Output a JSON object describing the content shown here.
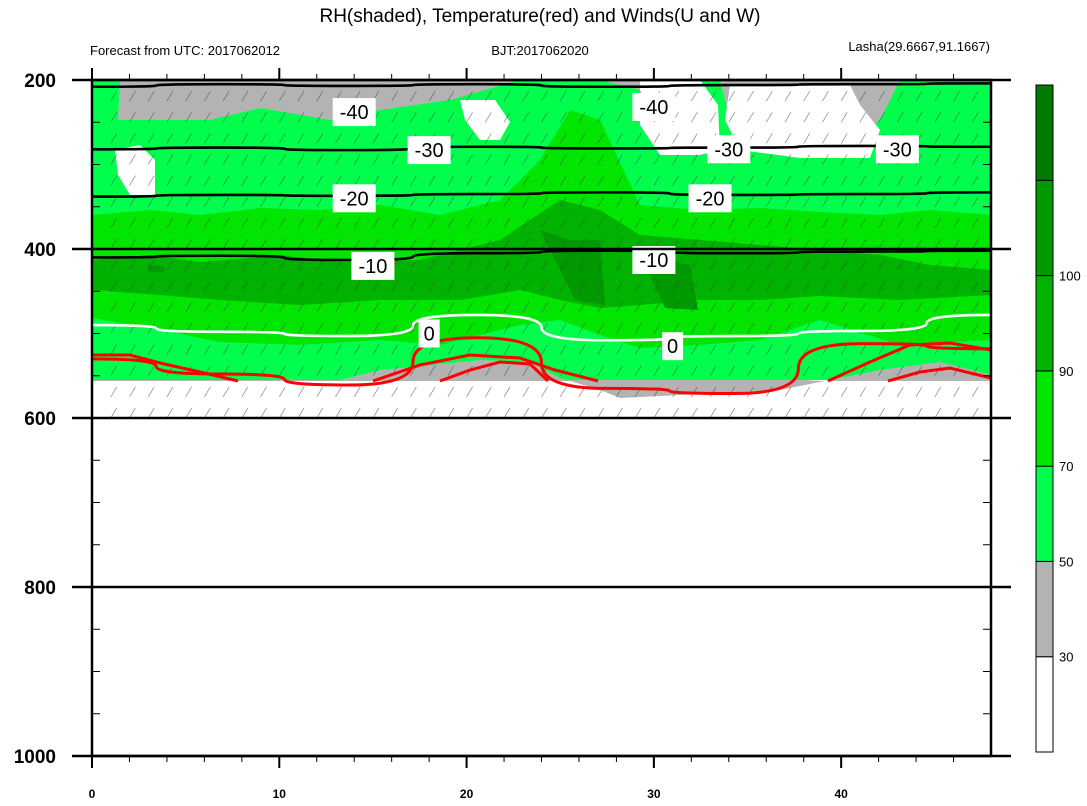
{
  "chart_data": {
    "type": "contour",
    "title": "RH(shaded), Temperature(red) and Winds(U and W)",
    "subtitle_left": "Forecast from UTC: 2017062012",
    "subtitle_center": "BJT:2017062020",
    "subtitle_right": "Lasha(29.6667,91.1667)",
    "x_ticks": [
      "0",
      "10",
      "20",
      "30",
      "40"
    ],
    "x_tick_values": [
      0,
      10,
      20,
      30,
      40
    ],
    "xlim": [
      0,
      48
    ],
    "y_ticks": [
      "200",
      "400",
      "600",
      "800",
      "1000"
    ],
    "y_tick_values": [
      200,
      400,
      600,
      800,
      1000
    ],
    "ylim": [
      1000,
      200
    ],
    "colorbar": {
      "labels": [
        "30",
        "50",
        "70",
        "90",
        "100"
      ],
      "levels": [
        30,
        50,
        70,
        90,
        100
      ],
      "colors": [
        "#ffffff",
        "#b3b3b3",
        "#00ff4d",
        "#00e600",
        "#00b300",
        "#009900",
        "#007a00"
      ]
    },
    "temperature_contours": [
      {
        "label": "-40",
        "level": -40,
        "color": "#000000",
        "p": [
          208,
          205,
          207,
          205,
          208,
          206,
          205,
          204
        ]
      },
      {
        "label": "-30",
        "level": -30,
        "color": "#000000",
        "p": [
          282,
          280,
          283,
          279,
          281,
          280,
          278,
          279
        ]
      },
      {
        "label": "-20",
        "level": -20,
        "color": "#000000",
        "p": [
          338,
          336,
          337,
          335,
          333,
          336,
          335,
          333
        ]
      },
      {
        "label": "-10",
        "level": -10,
        "color": "#000000",
        "p": [
          410,
          408,
          413,
          405,
          402,
          405,
          403,
          402
        ]
      },
      {
        "label": "0",
        "level": 0,
        "color": "#ffffff",
        "p": [
          490,
          498,
          503,
          478,
          508,
          503,
          497,
          478
        ]
      },
      {
        "label": "",
        "level": 10,
        "color": "#ff0000",
        "p": [
          530,
          548,
          561,
          505,
          565,
          571,
          512,
          518
        ]
      }
    ],
    "contour_label_texts": [
      {
        "text": "-40",
        "x": 14,
        "p": 238
      },
      {
        "text": "-40",
        "x": 30,
        "p": 232
      },
      {
        "text": "-30",
        "x": 18,
        "p": 283
      },
      {
        "text": "-30",
        "x": 34,
        "p": 282
      },
      {
        "text": "-30",
        "x": 43,
        "p": 282
      },
      {
        "text": "-20",
        "x": 14,
        "p": 340
      },
      {
        "text": "-20",
        "x": 33,
        "p": 340
      },
      {
        "text": "-10",
        "x": 15,
        "p": 420
      },
      {
        "text": "-10",
        "x": 30,
        "p": 413
      },
      {
        "text": "0",
        "x": 18,
        "p": 500
      },
      {
        "text": "0",
        "x": 31,
        "p": 515
      }
    ]
  }
}
